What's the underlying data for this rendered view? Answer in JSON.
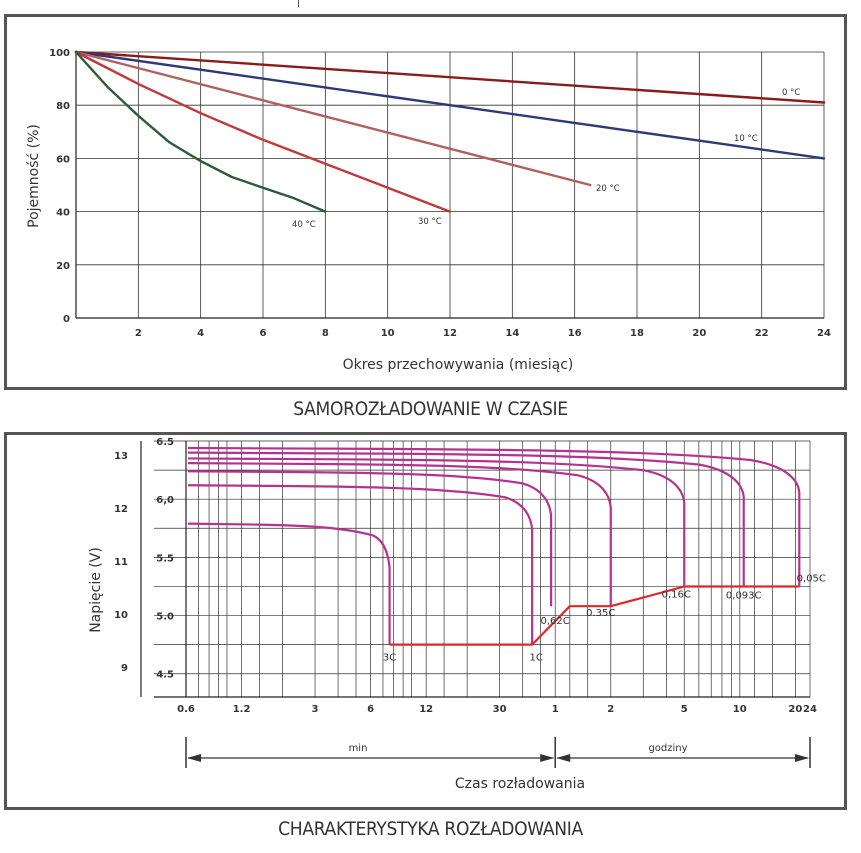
{
  "chart_data": [
    {
      "type": "line",
      "title": "SAMOROZŁADOWANIE W CZASIE",
      "xlabel": "Okres przechowywania (miesiąc)",
      "ylabel": "Pojemność  (%)",
      "xlim": [
        0,
        24
      ],
      "ylim": [
        0,
        100
      ],
      "xticks": [
        2,
        4,
        6,
        8,
        10,
        12,
        14,
        16,
        18,
        20,
        22,
        24
      ],
      "yticks": [
        0,
        20,
        40,
        60,
        80,
        100
      ],
      "grid": true,
      "series": [
        {
          "name": "0 °C",
          "color": "#8b1a1a",
          "points": [
            [
              0,
              100
            ],
            [
              24,
              81
            ]
          ]
        },
        {
          "name": "10 °C",
          "color": "#2e3a78",
          "points": [
            [
              0,
              100
            ],
            [
              24,
              60
            ]
          ]
        },
        {
          "name": "20 °C",
          "color": "#b0605e",
          "points": [
            [
              0,
              100
            ],
            [
              16.5,
              50
            ]
          ]
        },
        {
          "name": "30 °C",
          "color": "#c0393b",
          "points": [
            [
              0,
              100
            ],
            [
              1,
              94
            ],
            [
              2,
              88
            ],
            [
              4,
              77
            ],
            [
              6,
              67
            ],
            [
              8,
              58
            ],
            [
              10,
              49
            ],
            [
              12,
              40
            ]
          ]
        },
        {
          "name": "40 °C",
          "color": "#2e5a3a",
          "points": [
            [
              0,
              100
            ],
            [
              1,
              87
            ],
            [
              2,
              76
            ],
            [
              3,
              66
            ],
            [
              4,
              59
            ],
            [
              5,
              53
            ],
            [
              6,
              49
            ],
            [
              7,
              45
            ],
            [
              8,
              40
            ]
          ]
        }
      ]
    },
    {
      "type": "line",
      "title": "CHARAKTERYSTYKA ROZŁADOWANIA",
      "xlabel": "Czas rozładowania",
      "ylabel": "Napięcie (V)",
      "xticks": [
        "0.6",
        "1.2",
        "3",
        "6",
        "12",
        "30",
        "1",
        "2",
        "5",
        "10",
        "20",
        "24"
      ],
      "yticks_outer": [
        "9",
        "10",
        "11",
        "12",
        "13"
      ],
      "yticks_inner": [
        "4.5",
        "5.0",
        "5.5",
        "6,0",
        "6.5"
      ],
      "ylim": [
        4.3,
        6.5
      ],
      "range_labels": [
        "min",
        "godziny"
      ],
      "grid": true,
      "series": [
        {
          "name": "3C",
          "color": "#b5338f",
          "start_v": 5.79,
          "end_min": 7.6
        },
        {
          "name": "1C",
          "color": "#b5338f",
          "start_v": 6.12,
          "end_min": 45
        },
        {
          "name": "0,62C",
          "color": "#b5338f",
          "start_v": 6.24,
          "end_min": 57
        },
        {
          "name": "0.35C",
          "color": "#b5338f",
          "start_v": 6.31,
          "end_min": 120
        },
        {
          "name": "0,16C",
          "color": "#b5338f",
          "start_v": 6.35,
          "end_min": 300
        },
        {
          "name": "0,093C",
          "color": "#b5338f",
          "start_v": 6.4,
          "end_min": 630
        },
        {
          "name": "0,05C",
          "color": "#b5338f",
          "start_v": 6.44,
          "end_min": 1260
        }
      ],
      "cutoff_line": {
        "color": "#e0282a",
        "points": [
          [
            7.6,
            4.75
          ],
          [
            45,
            4.75
          ],
          [
            72,
            5.08
          ],
          [
            120,
            5.08
          ],
          [
            300,
            5.25
          ],
          [
            1260,
            5.25
          ]
        ]
      }
    }
  ]
}
